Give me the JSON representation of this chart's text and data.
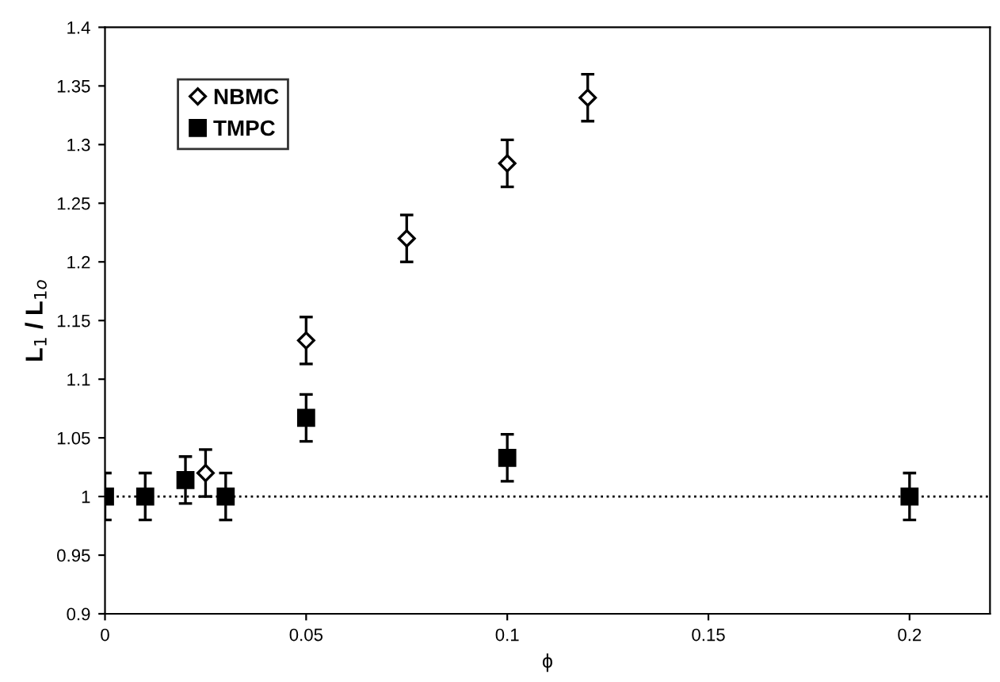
{
  "chart_data": {
    "type": "scatter",
    "xlabel": "ϕ",
    "ylabel": "L$_{1}$ / L$_{1o}$",
    "xlim": [
      0,
      0.22
    ],
    "xticks": [
      0,
      0.05,
      0.1,
      0.15,
      0.2
    ],
    "ylim": [
      0.9,
      1.4
    ],
    "yticks": [
      0.9,
      0.95,
      1,
      1.05,
      1.1,
      1.15,
      1.2,
      1.25,
      1.3,
      1.35,
      1.4
    ],
    "grid": false,
    "legend": "top left",
    "series": [
      {
        "name": "NBMC",
        "color": "#000000",
        "marker": "diamond",
        "x": [
          0.025,
          0.05,
          0.075,
          0.1,
          0.12
        ],
        "values": [
          1.02,
          1.133,
          1.22,
          1.284,
          1.34
        ],
        "errors": [
          0.02,
          0.02,
          0.02,
          0.02,
          0.02
        ]
      },
      {
        "name": "TMPC",
        "color": "#000000",
        "marker": "square",
        "x": [
          0,
          0.01,
          0.02,
          0.03,
          0.05,
          0.1,
          0.2
        ],
        "values": [
          1,
          1,
          1.014,
          1,
          1.067,
          1.033,
          1
        ],
        "errors": [
          0.02,
          0.02,
          0.02,
          0.02,
          0.02,
          0.02,
          0.02
        ]
      }
    ],
    "ref_lines": [
      {
        "axis": "y",
        "value": 1,
        "color": "#000000",
        "line_style": "dotted"
      }
    ]
  }
}
